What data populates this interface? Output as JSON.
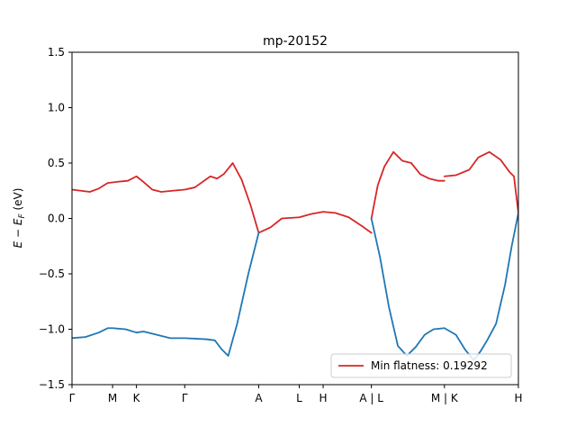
{
  "chart_data": {
    "type": "line",
    "title": "mp-20152",
    "ylabel": "E − E_F (eV)",
    "xlabel": "",
    "ylim": [
      -1.5,
      1.5
    ],
    "xlim": [
      0,
      1.0
    ],
    "grid": false,
    "legend_position": "lower-right",
    "yticks": [
      -1.5,
      -1.0,
      -0.5,
      0.0,
      0.5,
      1.0,
      1.5
    ],
    "ytick_labels": [
      "−1.5",
      "−1.0",
      "−0.5",
      "0.0",
      "0.5",
      "1.0",
      "1.5"
    ],
    "kpoints": [
      {
        "x": 0.0,
        "label": "Γ"
      },
      {
        "x": 0.0909,
        "label": "M"
      },
      {
        "x": 0.1444,
        "label": "K"
      },
      {
        "x": 0.2525,
        "label": "Γ"
      },
      {
        "x": 0.4182,
        "label": "A"
      },
      {
        "x": 0.5091,
        "label": "L"
      },
      {
        "x": 0.5626,
        "label": "H"
      },
      {
        "x": 0.6707,
        "label": "A | L"
      },
      {
        "x": 0.8343,
        "label": "M | K"
      },
      {
        "x": 1.0,
        "label": "H"
      }
    ],
    "series": [
      {
        "name": "Min flatness: 0.19292",
        "color": "#d62728",
        "in_legend": true,
        "segments": [
          [
            [
              0.0,
              0.26
            ],
            [
              0.02,
              0.25
            ],
            [
              0.04,
              0.24
            ],
            [
              0.06,
              0.27
            ],
            [
              0.08,
              0.32
            ],
            [
              0.1,
              0.33
            ],
            [
              0.125,
              0.34
            ],
            [
              0.1444,
              0.38
            ],
            [
              0.16,
              0.33
            ],
            [
              0.18,
              0.26
            ],
            [
              0.2,
              0.24
            ],
            [
              0.225,
              0.25
            ],
            [
              0.2525,
              0.26
            ],
            [
              0.275,
              0.28
            ],
            [
              0.31,
              0.38
            ],
            [
              0.325,
              0.36
            ],
            [
              0.34,
              0.4
            ],
            [
              0.36,
              0.5
            ],
            [
              0.38,
              0.35
            ],
            [
              0.4,
              0.12
            ],
            [
              0.4182,
              -0.13
            ],
            [
              0.445,
              -0.08
            ],
            [
              0.47,
              0.0
            ],
            [
              0.5091,
              0.01
            ],
            [
              0.535,
              0.04
            ],
            [
              0.5626,
              0.06
            ],
            [
              0.59,
              0.05
            ],
            [
              0.62,
              0.01
            ],
            [
              0.65,
              -0.07
            ],
            [
              0.6707,
              -0.13
            ]
          ],
          [
            [
              0.6707,
              0.0
            ],
            [
              0.685,
              0.3
            ],
            [
              0.7,
              0.47
            ],
            [
              0.72,
              0.6
            ],
            [
              0.74,
              0.52
            ],
            [
              0.76,
              0.5
            ],
            [
              0.78,
              0.4
            ],
            [
              0.8,
              0.36
            ],
            [
              0.82,
              0.34
            ],
            [
              0.8343,
              0.34
            ]
          ],
          [
            [
              0.8343,
              0.38
            ],
            [
              0.86,
              0.39
            ],
            [
              0.89,
              0.44
            ],
            [
              0.91,
              0.55
            ],
            [
              0.935,
              0.6
            ],
            [
              0.96,
              0.53
            ],
            [
              0.98,
              0.42
            ],
            [
              0.99,
              0.38
            ],
            [
              1.0,
              0.05
            ]
          ]
        ]
      },
      {
        "name": "",
        "color": "#1f77b4",
        "in_legend": false,
        "segments": [
          [
            [
              0.0,
              -1.08
            ],
            [
              0.03,
              -1.07
            ],
            [
              0.06,
              -1.03
            ],
            [
              0.08,
              -0.99
            ],
            [
              0.0909,
              -0.99
            ],
            [
              0.12,
              -1.0
            ],
            [
              0.1444,
              -1.03
            ],
            [
              0.16,
              -1.02
            ],
            [
              0.19,
              -1.05
            ],
            [
              0.22,
              -1.08
            ],
            [
              0.2525,
              -1.08
            ],
            [
              0.3,
              -1.09
            ],
            [
              0.32,
              -1.1
            ],
            [
              0.335,
              -1.18
            ],
            [
              0.35,
              -1.24
            ],
            [
              0.37,
              -0.95
            ],
            [
              0.395,
              -0.5
            ],
            [
              0.4182,
              -0.13
            ]
          ],
          [
            [
              0.6707,
              0.0
            ],
            [
              0.69,
              -0.35
            ],
            [
              0.71,
              -0.8
            ],
            [
              0.73,
              -1.15
            ],
            [
              0.75,
              -1.24
            ],
            [
              0.77,
              -1.16
            ],
            [
              0.79,
              -1.05
            ],
            [
              0.81,
              -1.0
            ],
            [
              0.8343,
              -0.99
            ]
          ],
          [
            [
              0.8343,
              -0.99
            ],
            [
              0.86,
              -1.05
            ],
            [
              0.88,
              -1.18
            ],
            [
              0.9,
              -1.28
            ],
            [
              0.915,
              -1.2
            ],
            [
              0.93,
              -1.1
            ],
            [
              0.95,
              -0.95
            ],
            [
              0.97,
              -0.6
            ],
            [
              0.985,
              -0.25
            ],
            [
              1.0,
              0.05
            ]
          ]
        ]
      }
    ]
  }
}
